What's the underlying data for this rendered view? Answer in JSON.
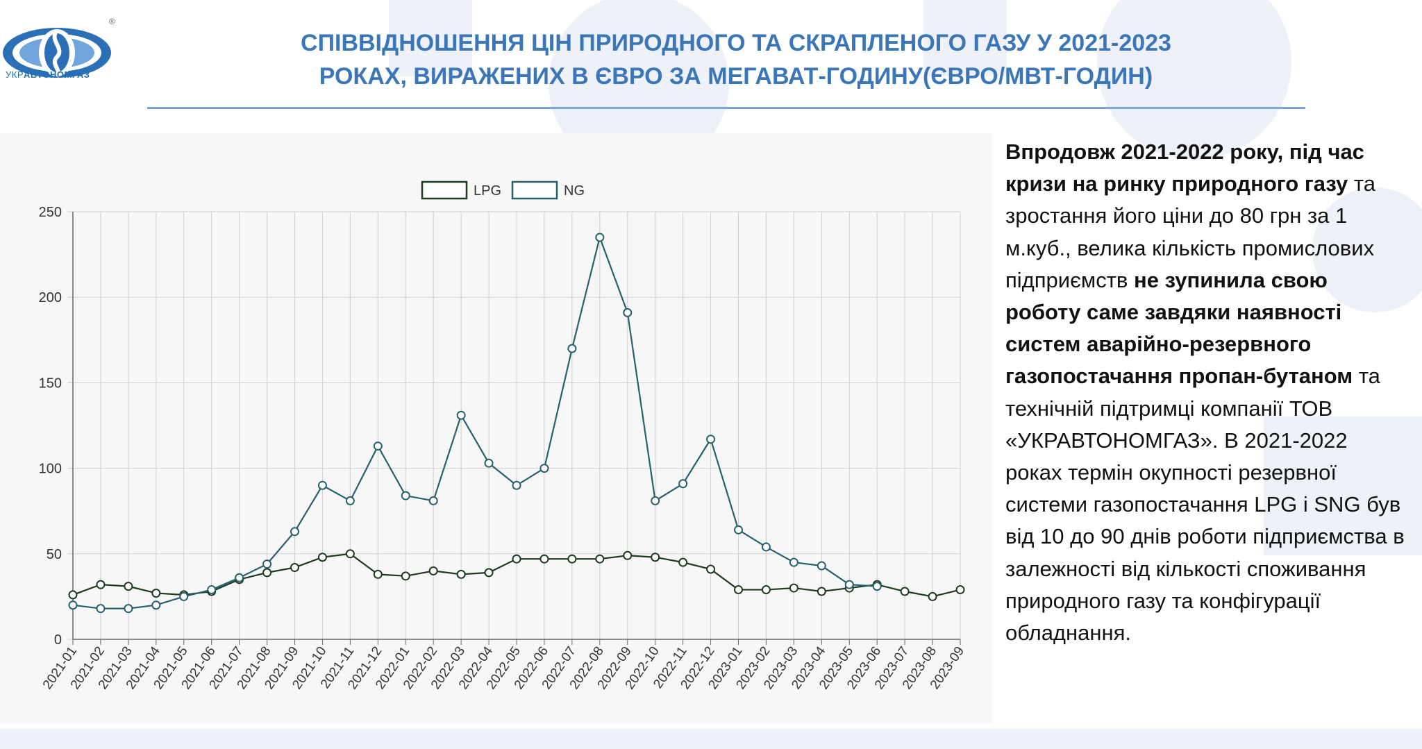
{
  "logo": {
    "brand_prefix": "УКР",
    "brand_main": "АВТОНОМГАЗ",
    "registered_mark": "®"
  },
  "title": {
    "line1": "СПІВВІДНОШЕННЯ ЦІН ПРИРОДНОГО ТА СКРАПЛЕНОГО ГАЗУ У 2021-2023",
    "line2": "РОКАХ, ВИРАЖЕНИХ В ЄВРО ЗА МЕГАВАТ-ГОДИНУ(ЄВРО/МВТ-ГОДИН)"
  },
  "description": {
    "segments": [
      {
        "text": "Впродовж 2021-2022 року, під час кризи на ринку природного газу",
        "bold": true
      },
      {
        "text": " та зростання його ціни до 80 грн за 1 м.куб., велика кількість промислових підприємств ",
        "bold": false
      },
      {
        "text": "не зупинила свою роботу саме завдяки наявності систем аварійно-резервного газопостачання пропан-бутаном",
        "bold": true
      },
      {
        "text": " та технічній підтримці компанії ТОВ «УКРАВТОНОМГАЗ». В 2021-2022 роках термін  окупності резервної системи газопостачання LPG і SNG був від 10 до 90 днів роботи підприємства в залежності від кількості споживання природного газу та конфігурації обладнання.",
        "bold": false
      }
    ]
  },
  "colors": {
    "title": "#3a76b8",
    "lpg": "#1e3a1e",
    "ng": "#25606e",
    "grid": "#cfcfcf"
  },
  "chart_data": {
    "type": "line",
    "title": "",
    "xlabel": "",
    "ylabel": "",
    "ylim": [
      0,
      250
    ],
    "yticks": [
      0,
      50,
      100,
      150,
      200,
      250
    ],
    "grid": true,
    "legend_position": "top-center",
    "categories": [
      "2021-01",
      "2021-02",
      "2021-03",
      "2021-04",
      "2021-05",
      "2021-06",
      "2021-07",
      "2021-08",
      "2021-09",
      "2021-10",
      "2021-11",
      "2021-12",
      "2022-01",
      "2022-02",
      "2022-03",
      "2022-04",
      "2022-05",
      "2022-06",
      "2022-07",
      "2022-08",
      "2022-09",
      "2022-10",
      "2022-11",
      "2022-12",
      "2023-01",
      "2023-02",
      "2023-03",
      "2023-04",
      "2023-05",
      "2023-06",
      "2023-07",
      "2023-08",
      "2023-09"
    ],
    "series": [
      {
        "name": "LPG",
        "values": [
          26,
          32,
          31,
          27,
          26,
          28,
          35,
          39,
          42,
          48,
          50,
          38,
          37,
          40,
          38,
          39,
          47,
          47,
          47,
          47,
          49,
          48,
          45,
          41,
          29,
          29,
          30,
          28,
          30,
          32,
          28,
          25,
          29
        ]
      },
      {
        "name": "NG",
        "values": [
          20,
          18,
          18,
          20,
          25,
          29,
          36,
          44,
          63,
          90,
          81,
          113,
          84,
          81,
          131,
          103,
          90,
          100,
          170,
          235,
          191,
          81,
          91,
          117,
          64,
          54,
          45,
          43,
          32,
          31,
          null,
          null,
          null
        ]
      }
    ]
  }
}
